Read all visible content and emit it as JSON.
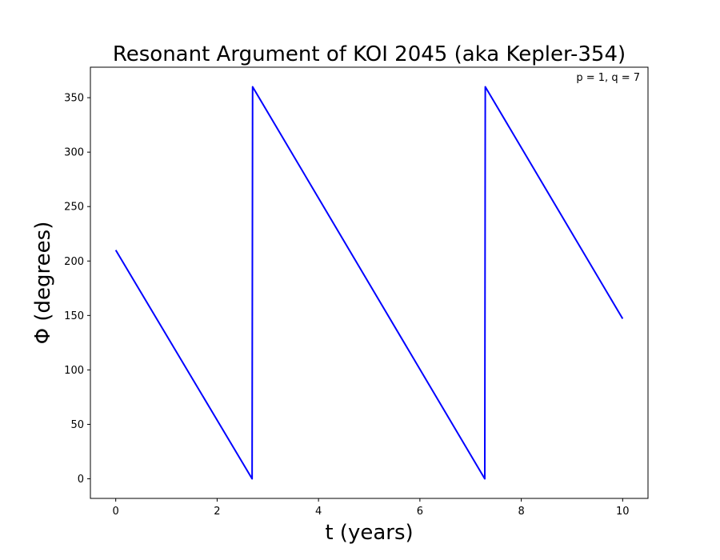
{
  "chart_data": {
    "type": "line",
    "title": "Resonant Argument of KOI 2045 (aka Kepler-354)",
    "xlabel": "t (years)",
    "ylabel": "Φ (degrees)",
    "annotation": "p = 1, q = 7",
    "xlim": [
      -0.5,
      10.5
    ],
    "ylim": [
      -18,
      378
    ],
    "xticks": [
      0,
      2,
      4,
      6,
      8,
      10
    ],
    "yticks": [
      0,
      50,
      100,
      150,
      200,
      250,
      300,
      350
    ],
    "grid": false,
    "series": [
      {
        "color": "#0000ff",
        "x": [
          0,
          2.69,
          2.7,
          7.28,
          7.29,
          10
        ],
        "y": [
          210,
          0,
          360,
          0,
          360,
          147
        ]
      }
    ]
  }
}
